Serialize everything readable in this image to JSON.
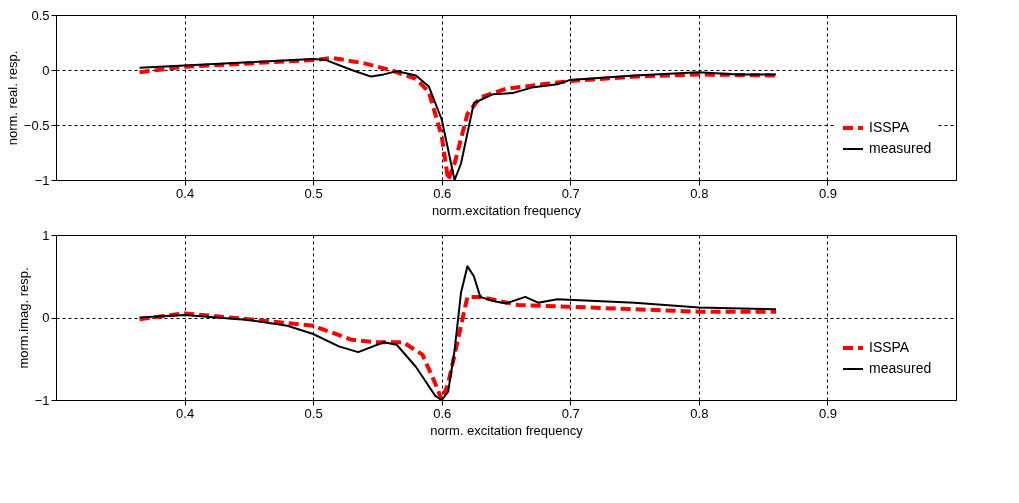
{
  "chart_data": [
    {
      "type": "line",
      "ylabel": "norm. real. resp.",
      "xlabel": "norm.excitation frequency",
      "xlim": [
        0.3,
        1.0
      ],
      "xticks": [
        0.4,
        0.5,
        0.6,
        0.7,
        0.8,
        0.9
      ],
      "ylim": [
        -1,
        0.5
      ],
      "yticks": [
        -1,
        -0.5,
        0,
        0.5
      ],
      "grid": true,
      "legend": "bottom right",
      "series": [
        {
          "name": "ISSPA",
          "color": "#ff0000",
          "line_style": "dashed",
          "x": [
            0.365,
            0.4,
            0.45,
            0.5,
            0.515,
            0.54,
            0.56,
            0.58,
            0.59,
            0.6,
            0.605,
            0.61,
            0.62,
            0.63,
            0.65,
            0.7,
            0.75,
            0.8,
            0.86
          ],
          "values": [
            -0.02,
            0.03,
            0.06,
            0.09,
            0.11,
            0.06,
            0.0,
            -0.08,
            -0.2,
            -0.6,
            -1.0,
            -0.85,
            -0.4,
            -0.25,
            -0.17,
            -0.1,
            -0.06,
            -0.04,
            -0.05
          ]
        },
        {
          "name": "measured",
          "color": "#000000",
          "line_style": "solid",
          "x": [
            0.365,
            0.4,
            0.45,
            0.5,
            0.51,
            0.53,
            0.545,
            0.555,
            0.565,
            0.58,
            0.59,
            0.6,
            0.61,
            0.615,
            0.625,
            0.64,
            0.655,
            0.67,
            0.69,
            0.7,
            0.75,
            0.8,
            0.83,
            0.86
          ],
          "values": [
            0.02,
            0.04,
            0.07,
            0.1,
            0.09,
            0.0,
            -0.06,
            -0.04,
            -0.01,
            -0.05,
            -0.15,
            -0.45,
            -1.0,
            -0.85,
            -0.3,
            -0.22,
            -0.21,
            -0.16,
            -0.13,
            -0.09,
            -0.05,
            -0.02,
            -0.04,
            -0.04
          ]
        }
      ]
    },
    {
      "type": "line",
      "ylabel": "morm.imag. resp.",
      "xlabel": "norm. excitation frequency",
      "xlim": [
        0.3,
        1.0
      ],
      "xticks": [
        0.4,
        0.5,
        0.6,
        0.7,
        0.8,
        0.9
      ],
      "ylim": [
        -1,
        1
      ],
      "yticks": [
        -1,
        0,
        1
      ],
      "grid": true,
      "legend": "bottom right",
      "series": [
        {
          "name": "ISSPA",
          "color": "#ff0000",
          "line_style": "dashed",
          "x": [
            0.365,
            0.4,
            0.45,
            0.5,
            0.53,
            0.55,
            0.57,
            0.585,
            0.595,
            0.6,
            0.605,
            0.615,
            0.62,
            0.63,
            0.66,
            0.7,
            0.75,
            0.8,
            0.86
          ],
          "values": [
            -0.02,
            0.05,
            -0.02,
            -0.1,
            -0.27,
            -0.3,
            -0.3,
            -0.45,
            -0.8,
            -1.0,
            -0.8,
            -0.1,
            0.25,
            0.25,
            0.15,
            0.13,
            0.1,
            0.07,
            0.07
          ]
        },
        {
          "name": "measured",
          "color": "#000000",
          "line_style": "solid",
          "x": [
            0.365,
            0.4,
            0.45,
            0.48,
            0.5,
            0.52,
            0.535,
            0.555,
            0.565,
            0.58,
            0.595,
            0.6,
            0.605,
            0.61,
            0.615,
            0.62,
            0.625,
            0.63,
            0.64,
            0.65,
            0.665,
            0.675,
            0.69,
            0.75,
            0.8,
            0.86
          ],
          "values": [
            0.0,
            0.03,
            -0.03,
            -0.1,
            -0.2,
            -0.35,
            -0.42,
            -0.3,
            -0.33,
            -0.6,
            -0.95,
            -1.0,
            -0.9,
            -0.4,
            0.3,
            0.62,
            0.5,
            0.25,
            0.2,
            0.17,
            0.25,
            0.18,
            0.22,
            0.18,
            0.12,
            0.1
          ]
        }
      ]
    }
  ]
}
